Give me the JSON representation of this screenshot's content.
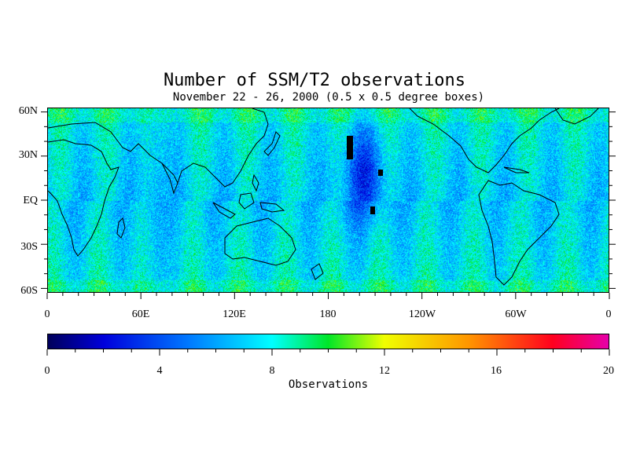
{
  "title": "Number of SSM/T2 observations",
  "subtitle": "November 22 - 26, 2000 (0.5 x 0.5 degree boxes)",
  "chart_data": {
    "type": "heatmap",
    "title": "Number of SSM/T2 observations",
    "subtitle": "November 22 - 26, 2000 (0.5 x 0.5 degree boxes)",
    "x_range": [
      0,
      360
    ],
    "y_range": [
      -63,
      63
    ],
    "x_tick_labels": [
      "0",
      "60E",
      "120E",
      "180",
      "120W",
      "60W",
      "0"
    ],
    "y_tick_labels": [
      "60N",
      "30N",
      "EQ",
      "30S",
      "60S"
    ],
    "colorbar": {
      "label": "Observations",
      "range": [
        0,
        20
      ],
      "tick_labels": [
        "0",
        "4",
        "8",
        "12",
        "16",
        "20"
      ]
    },
    "colors": {
      "low": "#000066",
      "mid_low": "#0000ff",
      "mid": "#00ffff",
      "mid_high": "#ffff00",
      "high": "#ff0000",
      "max": "#ff00aa"
    }
  }
}
